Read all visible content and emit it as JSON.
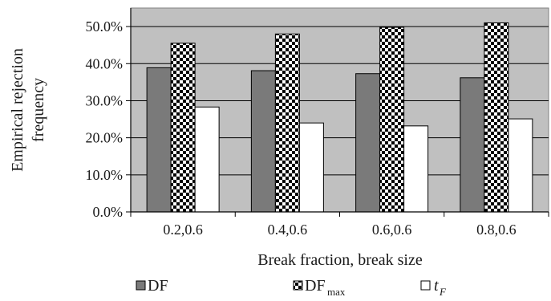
{
  "chart_data": {
    "type": "bar",
    "categories": [
      "0.2,0.6",
      "0.4,0.6",
      "0.6,0.6",
      "0.8,0.6"
    ],
    "series": [
      {
        "name": "DF",
        "values": [
          38.9,
          38.1,
          37.3,
          36.2
        ]
      },
      {
        "name": "DF_max",
        "values": [
          45.5,
          48.0,
          49.8,
          51.0
        ]
      },
      {
        "name": "t_F",
        "values": [
          28.3,
          24.0,
          23.2,
          25.1
        ]
      }
    ],
    "title": "",
    "xlabel": "Break fraction, break size",
    "ylabel_line1": "Empirical rejection",
    "ylabel_line2": "frequency",
    "ylim": [
      0,
      0.55
    ],
    "yticks": [
      "0.0%",
      "10.0%",
      "20.0%",
      "30.0%",
      "40.0%",
      "50.0%"
    ],
    "grid": true,
    "legend_position": "bottom",
    "legend": {
      "df": {
        "label": "DF"
      },
      "dfmax": {
        "label": "DF",
        "subscript": "max"
      },
      "tf": {
        "label": "t",
        "subscript": "F"
      }
    },
    "colors": {
      "plot_background": "#c0c0c0",
      "df": "#7a7a7a",
      "dfmax_pattern": "checkerboard",
      "tf": "#ffffff",
      "outline": "#000000"
    }
  }
}
